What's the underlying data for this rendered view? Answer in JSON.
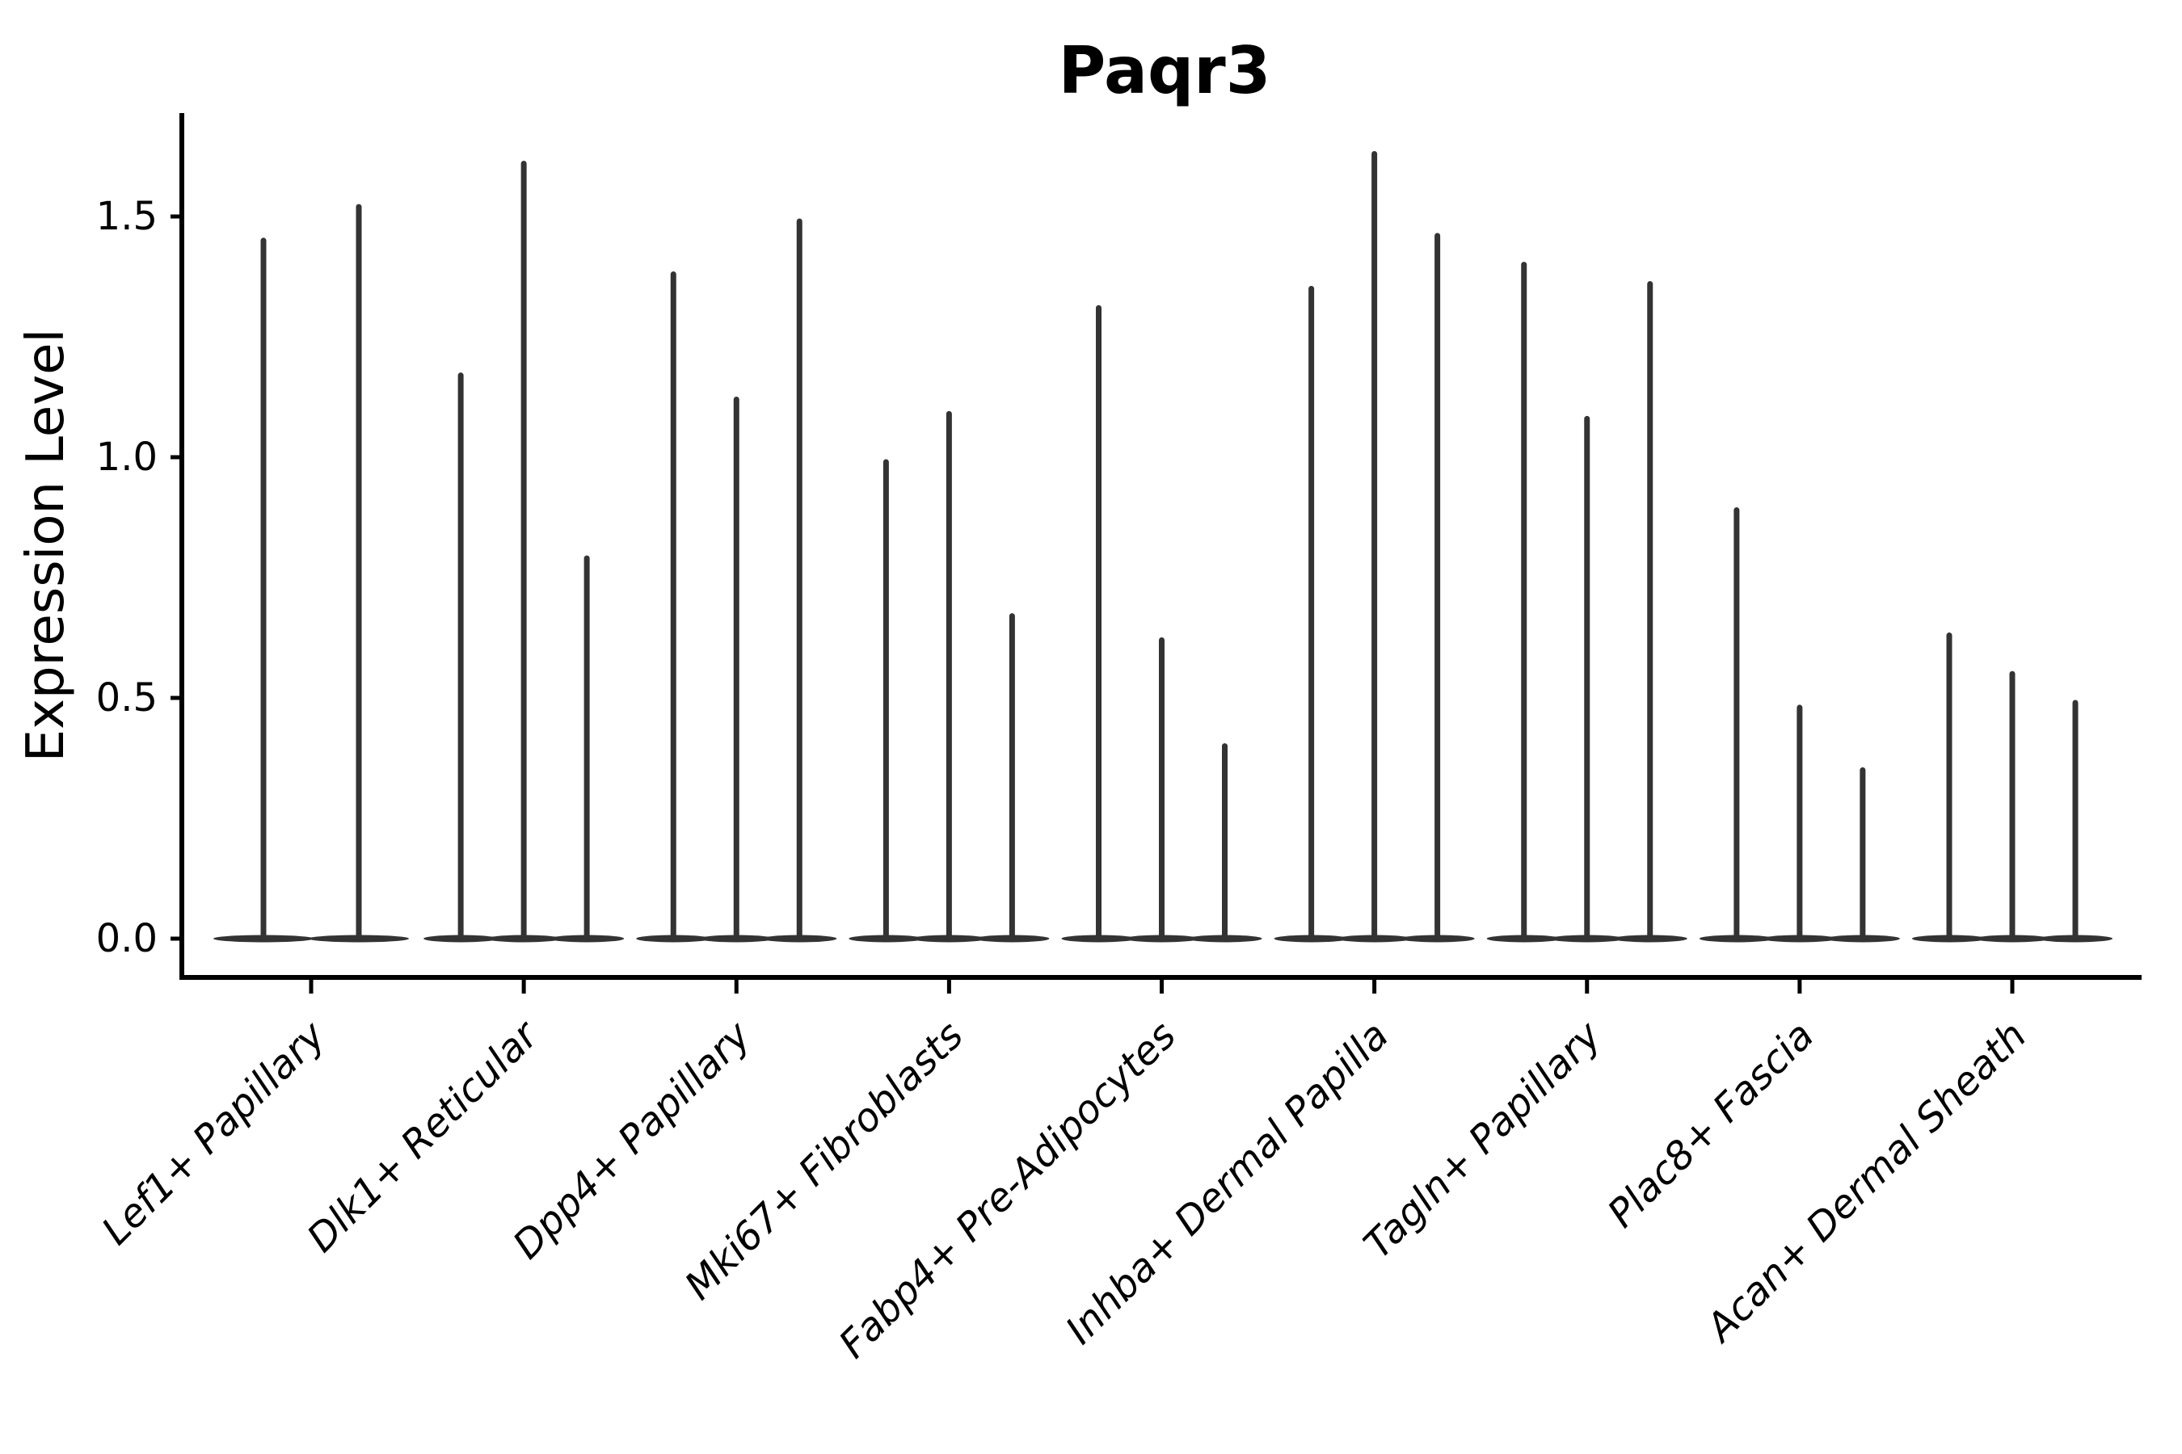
{
  "chart_data": {
    "type": "violin",
    "title": "Paqr3",
    "xlabel": "",
    "ylabel": "Expression Level",
    "y_tick_labels": [
      "0.0",
      "0.5",
      "1.0",
      "1.5"
    ],
    "y_tick_values": [
      0.0,
      0.5,
      1.0,
      1.5
    ],
    "ylim": [
      -0.08,
      1.71
    ],
    "grid": "off",
    "legend": "none",
    "violin_color": "#333333",
    "axis_color": "#000000",
    "categories": [
      "Lef1+ Papillary",
      "Dlk1+ Reticular",
      "Dpp4+ Papillary",
      "Mki67+ Fibroblasts",
      "Fabp4+ Pre-Adipocytes",
      "Inhba+ Dermal Papilla",
      "Tagln+ Papillary",
      "Plac8+ Fascia",
      "Acan+ Dermal Sheath"
    ],
    "groups": [
      {
        "label": "Lef1+ Papillary",
        "violin_maxima": [
          1.45,
          1.52
        ]
      },
      {
        "label": "Dlk1+ Reticular",
        "violin_maxima": [
          1.17,
          1.61,
          0.79
        ]
      },
      {
        "label": "Dpp4+ Papillary",
        "violin_maxima": [
          1.38,
          1.12,
          1.49
        ]
      },
      {
        "label": "Mki67+ Fibroblasts",
        "violin_maxima": [
          0.99,
          1.09,
          0.67
        ]
      },
      {
        "label": "Fabp4+ Pre-Adipocytes",
        "violin_maxima": [
          1.31,
          0.62,
          0.4
        ]
      },
      {
        "label": "Inhba+ Dermal Papilla",
        "violin_maxima": [
          1.35,
          1.63,
          1.46
        ]
      },
      {
        "label": "Tagln+ Papillary",
        "violin_maxima": [
          1.4,
          1.08,
          1.36
        ]
      },
      {
        "label": "Plac8+ Fascia",
        "violin_maxima": [
          0.89,
          0.48,
          0.35
        ]
      },
      {
        "label": "Acan+ Dermal Sheath",
        "violin_maxima": [
          0.63,
          0.55,
          0.49
        ]
      }
    ]
  }
}
